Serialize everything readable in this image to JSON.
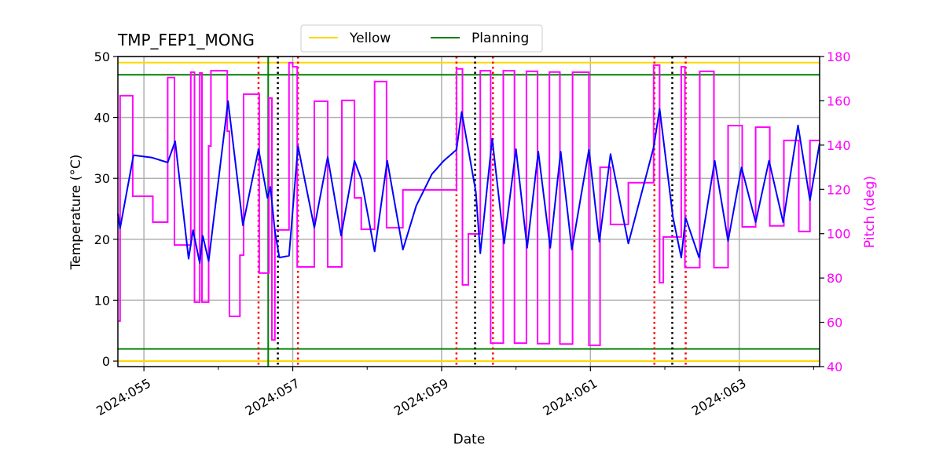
{
  "chart_data": {
    "type": "line",
    "title": "TMP_FEP1_MONG",
    "xlabel": "Date",
    "ylabel": "Temperature (°C)",
    "y2label": "Pitch (deg)",
    "xlim": [
      54.65,
      64.08
    ],
    "ylim": [
      -0.9,
      50
    ],
    "y2lim": [
      40,
      180
    ],
    "grid": true,
    "legend_position": "top-center",
    "x_ticks": [
      {
        "value": 55,
        "label": "2024:055"
      },
      {
        "value": 57,
        "label": "2024:057"
      },
      {
        "value": 59,
        "label": "2024:059"
      },
      {
        "value": 61,
        "label": "2024:061"
      },
      {
        "value": 63,
        "label": "2024:063"
      }
    ],
    "x_minor_ticks": [
      56,
      58,
      60,
      62,
      64
    ],
    "y_ticks": [
      0,
      10,
      20,
      30,
      40,
      50
    ],
    "y2_ticks": [
      40,
      60,
      80,
      100,
      120,
      140,
      160,
      180
    ],
    "colors": {
      "temperature": "#0000ff",
      "pitch": "#ff00ff",
      "yellow": "#ffd700",
      "planning": "#008000",
      "red_marker": "#ff0000",
      "black_marker": "#000000",
      "grid": "#b0b0b0"
    },
    "legend": [
      {
        "label": "Yellow",
        "color": "#ffd700"
      },
      {
        "label": "Planning",
        "color": "#008000"
      }
    ],
    "limit_lines": [
      {
        "series": "Yellow",
        "values": [
          49,
          0
        ],
        "color": "#ffd700"
      },
      {
        "series": "Planning",
        "values": [
          47,
          2
        ],
        "color": "#008000"
      }
    ],
    "vertical_lines": {
      "planning": [
        56.67
      ],
      "red_dotted": [
        56.54,
        57.07,
        59.2,
        59.69,
        61.86,
        62.28
      ],
      "black_dotted": [
        56.8,
        59.45,
        62.1
      ]
    },
    "temperature": [
      [
        54.65,
        24.2
      ],
      [
        54.68,
        21.8
      ],
      [
        54.86,
        33.8
      ],
      [
        55.11,
        33.4
      ],
      [
        55.32,
        32.6
      ],
      [
        55.42,
        36.1
      ],
      [
        55.6,
        16.8
      ],
      [
        55.66,
        21.5
      ],
      [
        55.75,
        16.1
      ],
      [
        55.79,
        20.6
      ],
      [
        55.87,
        16.4
      ],
      [
        56.13,
        42.7
      ],
      [
        56.33,
        22.3
      ],
      [
        56.54,
        34.8
      ],
      [
        56.66,
        26.8
      ],
      [
        56.7,
        28.6
      ],
      [
        56.76,
        21.3
      ],
      [
        56.82,
        17.0
      ],
      [
        56.95,
        17.3
      ],
      [
        57.07,
        35.3
      ],
      [
        57.29,
        21.9
      ],
      [
        57.47,
        33.5
      ],
      [
        57.65,
        20.6
      ],
      [
        57.83,
        32.9
      ],
      [
        57.92,
        29.9
      ],
      [
        58.1,
        18.0
      ],
      [
        58.27,
        32.9
      ],
      [
        58.48,
        18.3
      ],
      [
        58.66,
        25.5
      ],
      [
        58.87,
        30.7
      ],
      [
        59.03,
        32.9
      ],
      [
        59.2,
        34.7
      ],
      [
        59.27,
        40.9
      ],
      [
        59.46,
        27.8
      ],
      [
        59.52,
        17.7
      ],
      [
        59.68,
        36.5
      ],
      [
        59.84,
        19.3
      ],
      [
        60.0,
        34.8
      ],
      [
        60.15,
        18.6
      ],
      [
        60.3,
        34.4
      ],
      [
        60.46,
        18.6
      ],
      [
        60.6,
        34.4
      ],
      [
        60.75,
        18.3
      ],
      [
        60.98,
        34.7
      ],
      [
        61.12,
        19.6
      ],
      [
        61.27,
        34.0
      ],
      [
        61.51,
        19.3
      ],
      [
        61.85,
        35.1
      ],
      [
        61.93,
        41.4
      ],
      [
        62.11,
        23.6
      ],
      [
        62.22,
        17.0
      ],
      [
        62.28,
        23.5
      ],
      [
        62.46,
        17.0
      ],
      [
        62.67,
        32.9
      ],
      [
        62.85,
        19.7
      ],
      [
        63.03,
        31.8
      ],
      [
        63.22,
        22.8
      ],
      [
        63.4,
        32.9
      ],
      [
        63.59,
        22.8
      ],
      [
        63.79,
        38.7
      ],
      [
        63.95,
        26.4
      ],
      [
        64.08,
        35.8
      ]
    ],
    "pitch_steps": [
      [
        54.66,
        60.6
      ],
      [
        54.68,
        162.3
      ],
      [
        54.85,
        116.9
      ],
      [
        55.12,
        105.2
      ],
      [
        55.32,
        170.5
      ],
      [
        55.41,
        94.9
      ],
      [
        55.63,
        172.9
      ],
      [
        55.68,
        69.1
      ],
      [
        55.75,
        172.6
      ],
      [
        55.78,
        69.1
      ],
      [
        55.87,
        139.6
      ],
      [
        55.9,
        173.6
      ],
      [
        56.12,
        146.3
      ],
      [
        56.15,
        62.7
      ],
      [
        56.29,
        90.3
      ],
      [
        56.34,
        163.0
      ],
      [
        56.55,
        82.2
      ],
      [
        56.68,
        161.2
      ],
      [
        56.72,
        52.1
      ],
      [
        56.76,
        101.7
      ],
      [
        56.95,
        177.2
      ],
      [
        57.0,
        175.4
      ],
      [
        57.06,
        85.0
      ],
      [
        57.29,
        159.8
      ],
      [
        57.47,
        85.0
      ],
      [
        57.66,
        160.2
      ],
      [
        57.83,
        116.2
      ],
      [
        57.92,
        102.0
      ],
      [
        58.1,
        168.7
      ],
      [
        58.26,
        102.7
      ],
      [
        58.48,
        119.8
      ],
      [
        59.2,
        174.4
      ],
      [
        59.28,
        76.9
      ],
      [
        59.36,
        99.9
      ],
      [
        59.52,
        173.6
      ],
      [
        59.66,
        50.6
      ],
      [
        59.83,
        173.6
      ],
      [
        59.98,
        50.6
      ],
      [
        60.14,
        173.3
      ],
      [
        60.29,
        50.4
      ],
      [
        60.45,
        173.0
      ],
      [
        60.59,
        50.2
      ],
      [
        60.76,
        172.9
      ],
      [
        60.98,
        49.6
      ],
      [
        61.13,
        130.0
      ],
      [
        61.27,
        104.2
      ],
      [
        61.51,
        123.0
      ],
      [
        61.85,
        176.1
      ],
      [
        61.93,
        77.9
      ],
      [
        61.98,
        98.5
      ],
      [
        62.22,
        175.4
      ],
      [
        62.27,
        84.7
      ],
      [
        62.47,
        173.3
      ],
      [
        62.66,
        84.7
      ],
      [
        62.85,
        148.8
      ],
      [
        63.04,
        103.1
      ],
      [
        63.22,
        148.1
      ],
      [
        63.41,
        103.5
      ],
      [
        63.6,
        142.1
      ],
      [
        63.8,
        101.0
      ],
      [
        63.95,
        142.1
      ],
      [
        64.08,
        142.1
      ]
    ]
  }
}
